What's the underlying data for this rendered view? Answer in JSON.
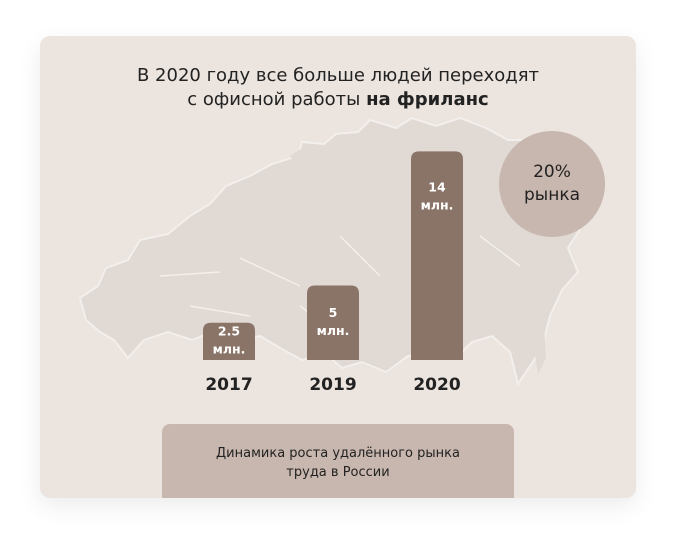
{
  "header": {
    "title_line1": "В 2020 году все больше людей переходят",
    "title_line2_prefix": "с офисной работы",
    "title_line2_bold": "на фриланс"
  },
  "badge": {
    "value": "20%",
    "label": "рынка"
  },
  "caption": {
    "line1": "Динамика роста удалённого рынка",
    "line2": "труда в России"
  },
  "chart_data": {
    "type": "bar",
    "categories": [
      "2017",
      "2019",
      "2020"
    ],
    "values": [
      2.5,
      5,
      14
    ],
    "data_labels": [
      [
        "2.5",
        "млн."
      ],
      [
        "5",
        "млн."
      ],
      [
        "14",
        "млн."
      ]
    ],
    "bar_color": "#8a7468"
  }
}
